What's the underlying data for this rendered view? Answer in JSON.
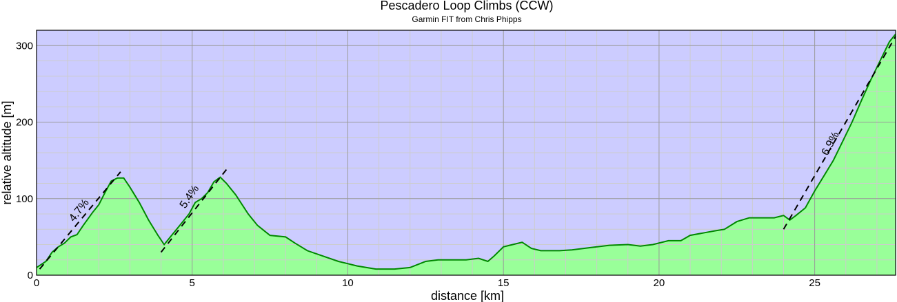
{
  "chart_data": {
    "type": "area",
    "title": "Pescadero Loop Climbs (CCW)",
    "subtitle": "Garmin FIT from Chris Phipps",
    "xlabel": "distance [km]",
    "ylabel": "relative altitude [m]",
    "xlim": [
      0,
      27.6
    ],
    "ylim": [
      0,
      320
    ],
    "xticks": [
      0,
      5,
      10,
      15,
      20,
      25
    ],
    "yticks": [
      0,
      100,
      200,
      300
    ],
    "grid": true,
    "colors": {
      "sky": "#ccccff",
      "fill": "#99ff99",
      "line": "#008800",
      "major_grid": "#999999",
      "minor_grid": "#cccccc"
    },
    "series": [
      {
        "name": "altitude",
        "x": [
          0,
          0.3,
          0.5,
          0.7,
          0.9,
          1.1,
          1.3,
          1.5,
          1.8,
          2.0,
          2.2,
          2.4,
          2.6,
          2.8,
          3.0,
          3.3,
          3.6,
          3.9,
          4.1,
          4.3,
          4.6,
          4.9,
          5.1,
          5.3,
          5.5,
          5.7,
          5.9,
          6.1,
          6.4,
          6.8,
          7.1,
          7.5,
          8.0,
          8.3,
          8.7,
          9.2,
          9.7,
          10.3,
          10.9,
          11.2,
          11.5,
          12.0,
          12.5,
          12.9,
          13.3,
          13.8,
          14.2,
          14.5,
          14.7,
          15.0,
          15.3,
          15.6,
          15.9,
          16.2,
          16.8,
          17.2,
          17.8,
          18.4,
          19.0,
          19.4,
          19.8,
          20.3,
          20.7,
          21.0,
          21.4,
          21.8,
          22.1,
          22.5,
          22.9,
          23.3,
          23.7,
          24.0,
          24.2,
          24.4,
          24.7,
          25.0,
          25.3,
          25.6,
          25.9,
          26.2,
          26.5,
          26.8,
          27.1,
          27.4,
          27.6
        ],
        "y": [
          10,
          18,
          30,
          37,
          42,
          50,
          53,
          65,
          82,
          92,
          108,
          123,
          127,
          127,
          115,
          95,
          72,
          52,
          40,
          50,
          65,
          80,
          95,
          100,
          108,
          122,
          128,
          120,
          105,
          80,
          65,
          52,
          50,
          42,
          32,
          25,
          18,
          12,
          8,
          8,
          8,
          10,
          18,
          20,
          20,
          20,
          22,
          18,
          25,
          37,
          40,
          43,
          35,
          32,
          32,
          33,
          36,
          39,
          40,
          38,
          40,
          45,
          45,
          52,
          55,
          58,
          60,
          70,
          75,
          75,
          75,
          78,
          72,
          78,
          88,
          110,
          130,
          150,
          175,
          200,
          228,
          255,
          280,
          305,
          315
        ]
      }
    ],
    "climbs": [
      {
        "label": "4.7%",
        "x0": 0.1,
        "y0": 8,
        "x1": 2.7,
        "y1": 135,
        "label_x": 1.45,
        "label_y": 82,
        "angle": -52
      },
      {
        "label": "5.4%",
        "x0": 4.0,
        "y0": 30,
        "x1": 6.1,
        "y1": 138,
        "label_x": 5.0,
        "label_y": 100,
        "angle": -56
      },
      {
        "label": "6.9%",
        "x0": 24.0,
        "y0": 60,
        "x1": 27.6,
        "y1": 312,
        "label_x": 25.6,
        "label_y": 170,
        "angle": -62
      }
    ]
  }
}
